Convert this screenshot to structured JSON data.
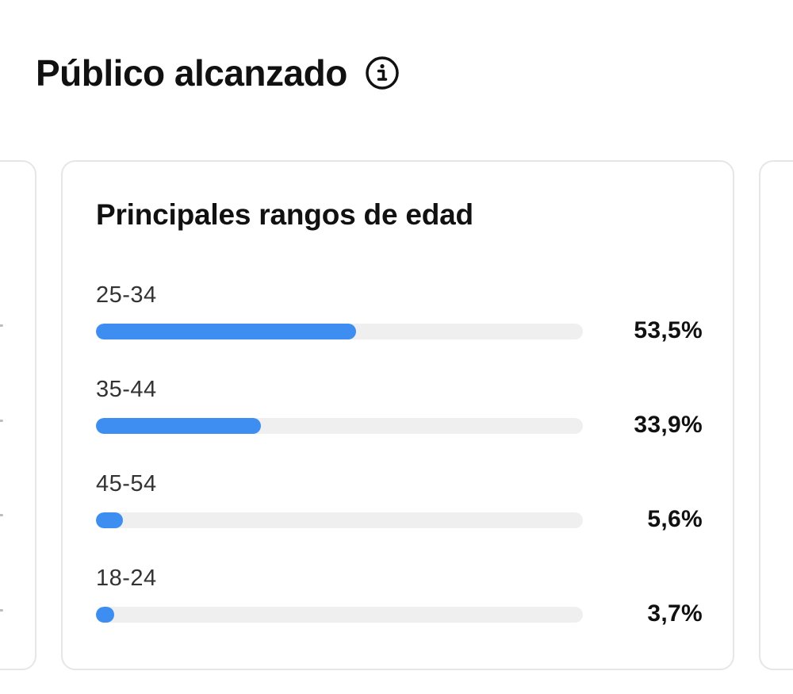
{
  "header": {
    "title": "Público alcanzado",
    "info_icon": "info-circle-icon"
  },
  "colors": {
    "bar_fill": "#3d8ef0",
    "bar_track": "#efefef",
    "card_border": "#e6e6e6"
  },
  "age_card": {
    "title": "Principales rangos de edad",
    "rows": [
      {
        "label": "25-34",
        "percent_text": "53,5%",
        "value": 53.5
      },
      {
        "label": "35-44",
        "percent_text": "33,9%",
        "value": 33.9
      },
      {
        "label": "45-54",
        "percent_text": "5,6%",
        "value": 5.6
      },
      {
        "label": "18-24",
        "percent_text": "3,7%",
        "value": 3.7
      }
    ]
  }
}
